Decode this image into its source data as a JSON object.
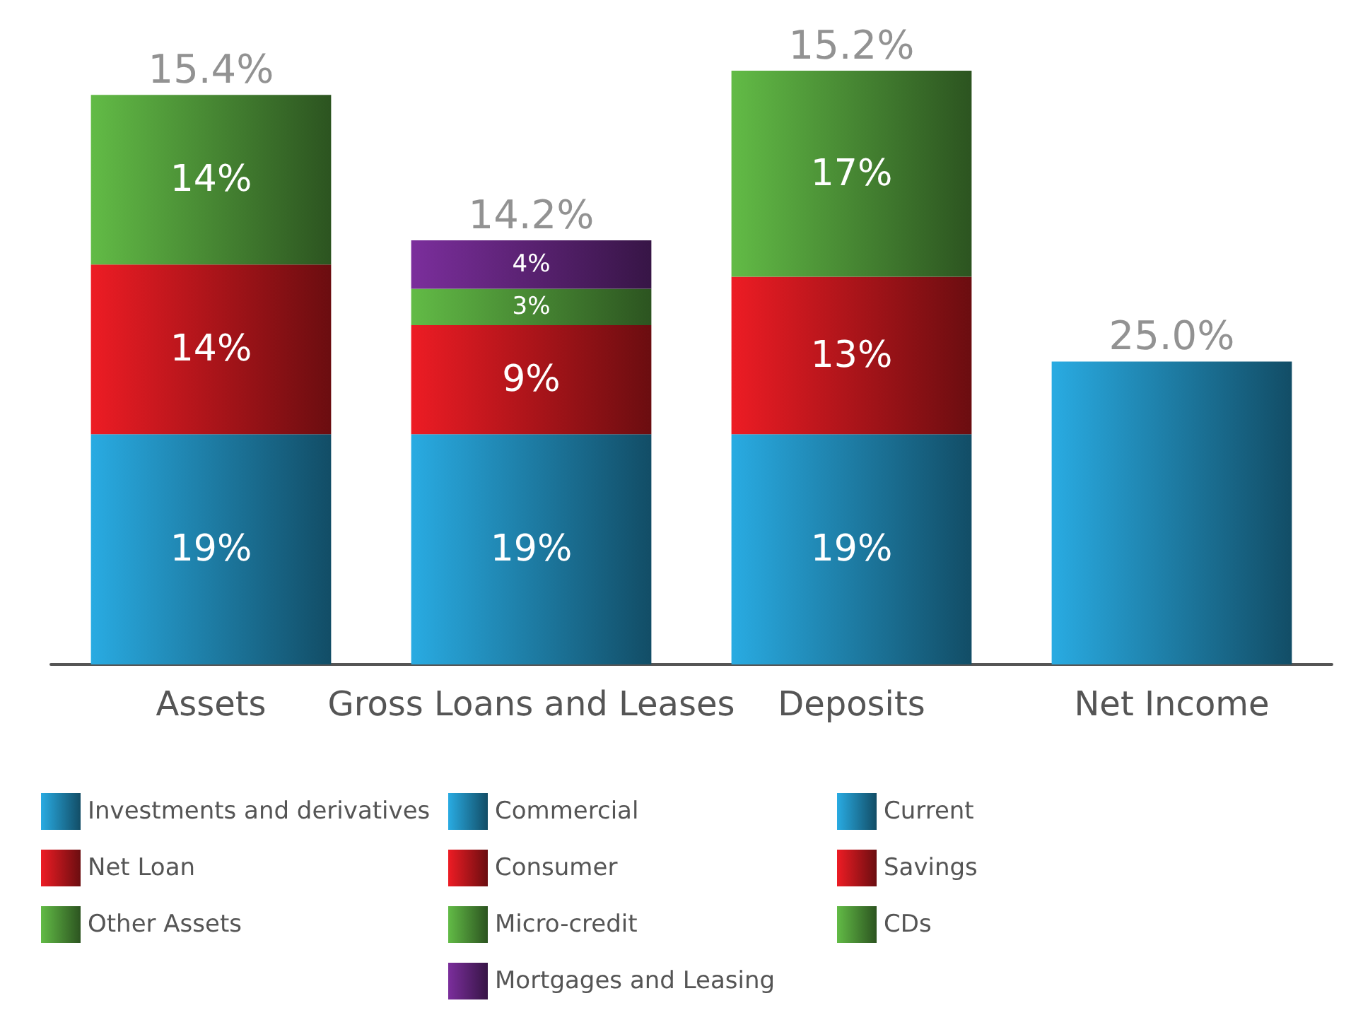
{
  "chart_data": {
    "type": "bar",
    "stacked": true,
    "tick_labels": "x",
    "categories": [
      "Assets",
      "Gross Loans and Leases",
      "Deposits",
      "Net Income"
    ],
    "series": [
      {
        "name": "Investments and derivatives",
        "color": "#29abe2",
        "values": [
          19,
          null,
          null,
          null
        ],
        "value_labels": [
          "19%",
          null,
          null,
          null
        ]
      },
      {
        "name": "Net Loan",
        "color": "#ed1c24",
        "values": [
          14,
          null,
          null,
          null
        ],
        "value_labels": [
          "14%",
          null,
          null,
          null
        ]
      },
      {
        "name": "Other Assets",
        "color": "#62bb46",
        "values": [
          14,
          null,
          null,
          null
        ],
        "value_labels": [
          "14%",
          null,
          null,
          null
        ]
      },
      {
        "name": "Commercial",
        "color": "#29abe2",
        "values": [
          null,
          19,
          null,
          null
        ],
        "value_labels": [
          null,
          "19%",
          null,
          null
        ]
      },
      {
        "name": "Consumer",
        "color": "#ed1c24",
        "values": [
          null,
          9,
          null,
          null
        ],
        "value_labels": [
          null,
          "9%",
          null,
          null
        ]
      },
      {
        "name": "Micro-credit",
        "color": "#62bb46",
        "values": [
          null,
          3,
          null,
          null
        ],
        "value_labels": [
          null,
          "3%",
          null,
          null
        ]
      },
      {
        "name": "Mortgages and Leasing",
        "color": "#7b2e9c",
        "values": [
          null,
          4,
          null,
          null
        ],
        "value_labels": [
          null,
          "4%",
          null,
          null
        ]
      },
      {
        "name": "Current",
        "color": "#29abe2",
        "values": [
          null,
          null,
          19,
          null
        ],
        "value_labels": [
          null,
          null,
          "19%",
          null
        ]
      },
      {
        "name": "Savings",
        "color": "#ed1c24",
        "values": [
          null,
          null,
          13,
          null
        ],
        "value_labels": [
          null,
          null,
          "13%",
          null
        ]
      },
      {
        "name": "CDs",
        "color": "#62bb46",
        "values": [
          null,
          null,
          17,
          null
        ],
        "value_labels": [
          null,
          null,
          "17%",
          null
        ]
      },
      {
        "color": "#29abe2",
        "values": [
          null,
          null,
          null,
          25
        ]
      }
    ],
    "annotations": [
      {
        "text": "15.4%",
        "x": "Assets",
        "y": 47
      },
      {
        "text": "14.2%",
        "x": "Gross Loans and Leases",
        "y": 35
      },
      {
        "text": "15.2%",
        "x": "Deposits",
        "y": 49
      },
      {
        "text": "25.0%",
        "x": "Net Income",
        "y": 25
      }
    ],
    "legend": "bottom"
  }
}
